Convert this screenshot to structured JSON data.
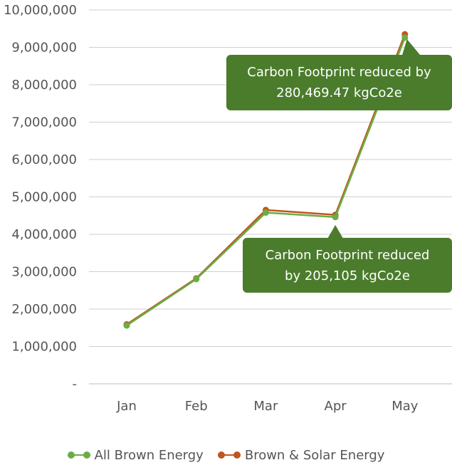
{
  "chart_data": {
    "type": "line",
    "categories": [
      "Jan",
      "Feb",
      "Mar",
      "Apr",
      "May"
    ],
    "series": [
      {
        "name": "All Brown Energy",
        "color": "#6aad45",
        "values": [
          1560000,
          2800000,
          4580000,
          4460000,
          9260000
        ]
      },
      {
        "name": "Brown & Solar Energy",
        "color": "#c0561e",
        "values": [
          1590000,
          2820000,
          4650000,
          4520000,
          9350000
        ]
      }
    ],
    "ylim": [
      0,
      10000000
    ],
    "yticks": [
      {
        "value": 10000000,
        "label": "10,000,000"
      },
      {
        "value": 9000000,
        "label": "9,000,000"
      },
      {
        "value": 8000000,
        "label": "8,000,000"
      },
      {
        "value": 7000000,
        "label": "7,000,000"
      },
      {
        "value": 6000000,
        "label": "6,000,000"
      },
      {
        "value": 5000000,
        "label": "5,000,000"
      },
      {
        "value": 4000000,
        "label": "4,000,000"
      },
      {
        "value": 3000000,
        "label": "3,000,000"
      },
      {
        "value": 2000000,
        "label": "2,000,000"
      },
      {
        "value": 1000000,
        "label": "1,000,000"
      },
      {
        "value": 0,
        "label": "-"
      }
    ],
    "grid": true,
    "legend_position": "bottom",
    "annotations": [
      {
        "id": "may",
        "category": "May",
        "line1": "Carbon Footprint reduced by",
        "line2": "280,469.47 kgCo2e"
      },
      {
        "id": "apr",
        "category": "Apr",
        "line1": "Carbon Footprint reduced",
        "line2": "by 205,105 kgCo2e"
      }
    ],
    "callout_color": "#4a7c2c"
  }
}
